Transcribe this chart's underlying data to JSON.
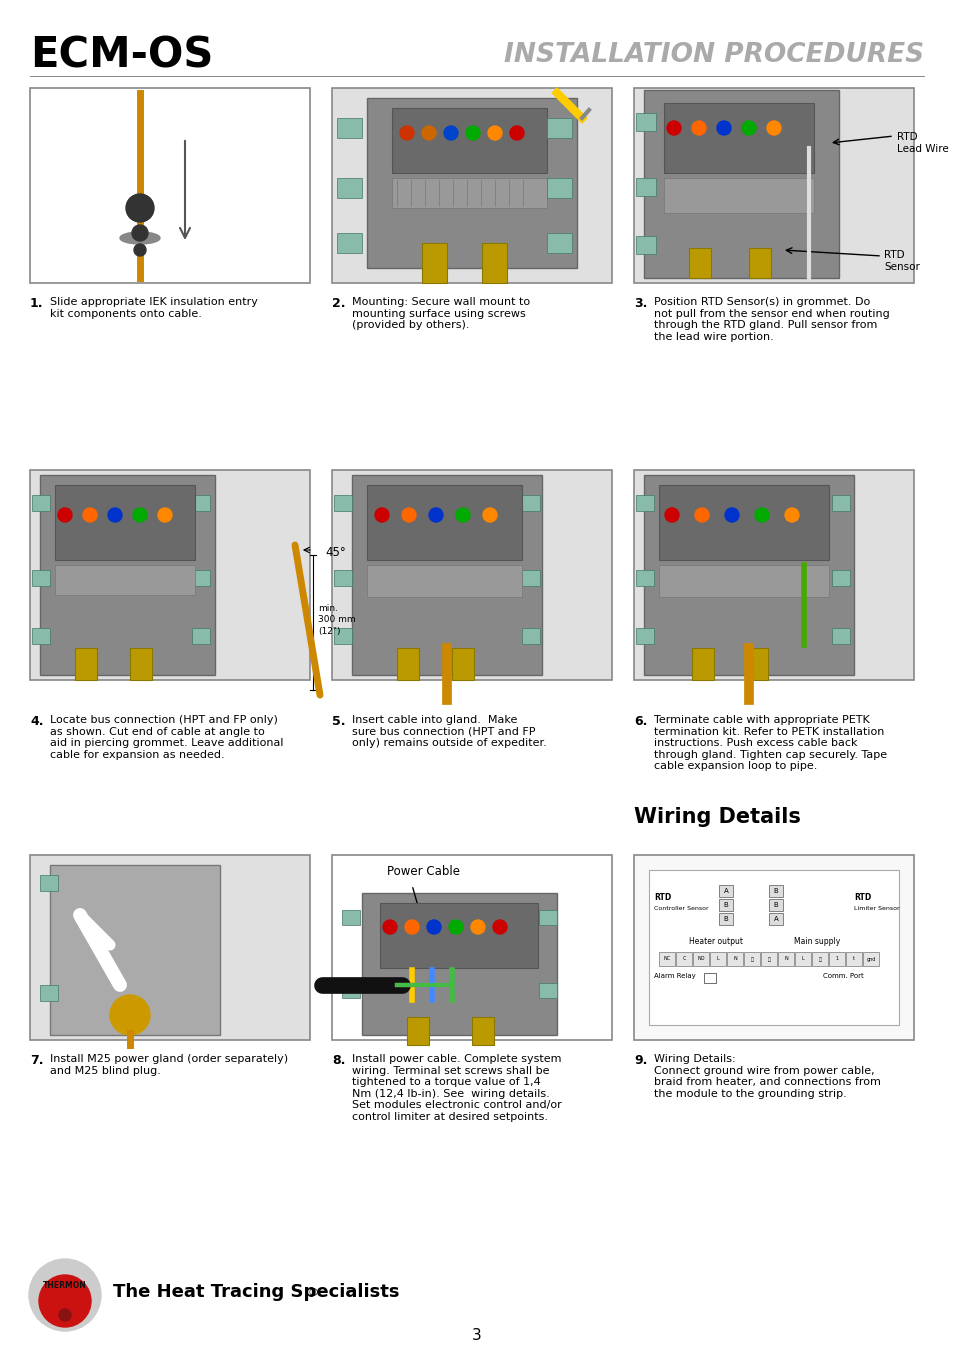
{
  "title_left": "ECM-OS",
  "title_right": "INSTALLATION PROCEDURES",
  "bg_color": "#ffffff",
  "step1_num": "1.",
  "step1_text": "Slide appropriate IEK insulation entry\nkit components onto cable.",
  "step2_num": "2.",
  "step2_text": "Mounting: Secure wall mount to\nmounting surface using screws\n(provided by others).",
  "step3_num": "3.",
  "step3_text": "Position RTD Sensor(s) in grommet. Do\nnot pull from the sensor end when routing\nthrough the RTD gland. Pull sensor from\nthe lead wire portion.",
  "step4_num": "4.",
  "step4_text": "Locate bus connection (HPT and FP only)\nas shown. Cut end of cable at angle to\naid in piercing grommet. Leave additional\ncable for expansion as needed.",
  "step5_num": "5.",
  "step5_text": "Insert cable into gland.  Make\nsure bus connection (HPT and FP\nonly) remains outside of expediter.",
  "step6_num": "6.",
  "step6_text": "Terminate cable with appropriate PETK\ntermination kit. Refer to PETK installation\ninstructions. Push excess cable back\nthrough gland. Tighten cap securely. Tape\ncable expansion loop to pipe.",
  "step7_num": "7.",
  "step7_text": "Install M25 power gland (order separately)\nand M25 blind plug.",
  "step8_num": "8.",
  "step8_text": "Install power cable. Complete system\nwiring. Terminal set screws shall be\ntightened to a torque value of 1,4\nNm (12,4 lb-in). See  wiring details.\nSet modules electronic control and/or\ncontrol limiter at desired setpoints.",
  "step9_num": "9.",
  "step9_text": "Wiring Details:\nConnect ground wire from power cable,\nbraid from heater, and connections from\nthe module to the grounding strip.",
  "wiring_title": "Wiring Details",
  "footer_text": "The Heat Tracing Specialists",
  "footer_reg": "®",
  "page_num": "3",
  "rtd_lead": "RTD\nLead Wire",
  "rtd_sensor": "RTD\nSensor",
  "angle_label": "45°",
  "min_label": "min.\n300 mm\n(12\")",
  "power_cable_label": "Power Cable"
}
